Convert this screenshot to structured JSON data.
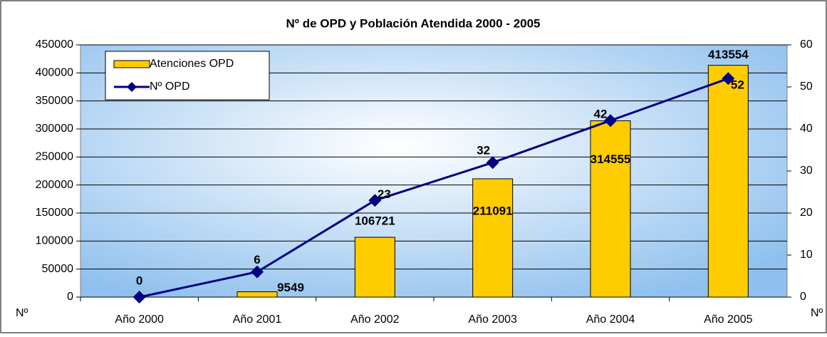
{
  "chart_data": {
    "type": "combo",
    "title": "Nº de OPD y Población Atendida 2000 - 2005",
    "y_label": "Nº",
    "y2_label": "Nº",
    "categories": [
      "Año 2000",
      "Año 2001",
      "Año 2002",
      "Año 2003",
      "Año 2004",
      "Año 2005"
    ],
    "series": [
      {
        "name": "Atenciones OPD",
        "type": "bar",
        "color": "#ffcc00",
        "values": [
          null,
          9549,
          106721,
          211091,
          314555,
          413554
        ]
      },
      {
        "name": "Nº OPD",
        "type": "line",
        "color": "#000080",
        "axis": "y2",
        "values": [
          0,
          6,
          23,
          32,
          42,
          52
        ]
      }
    ],
    "ylim": [
      0,
      450000
    ],
    "yticks": [
      0,
      50000,
      100000,
      150000,
      200000,
      250000,
      300000,
      350000,
      400000,
      450000
    ],
    "y2lim": [
      0,
      60
    ],
    "y2ticks": [
      0,
      10,
      20,
      30,
      40,
      50,
      60
    ],
    "grid": true,
    "legend": "upper left"
  }
}
